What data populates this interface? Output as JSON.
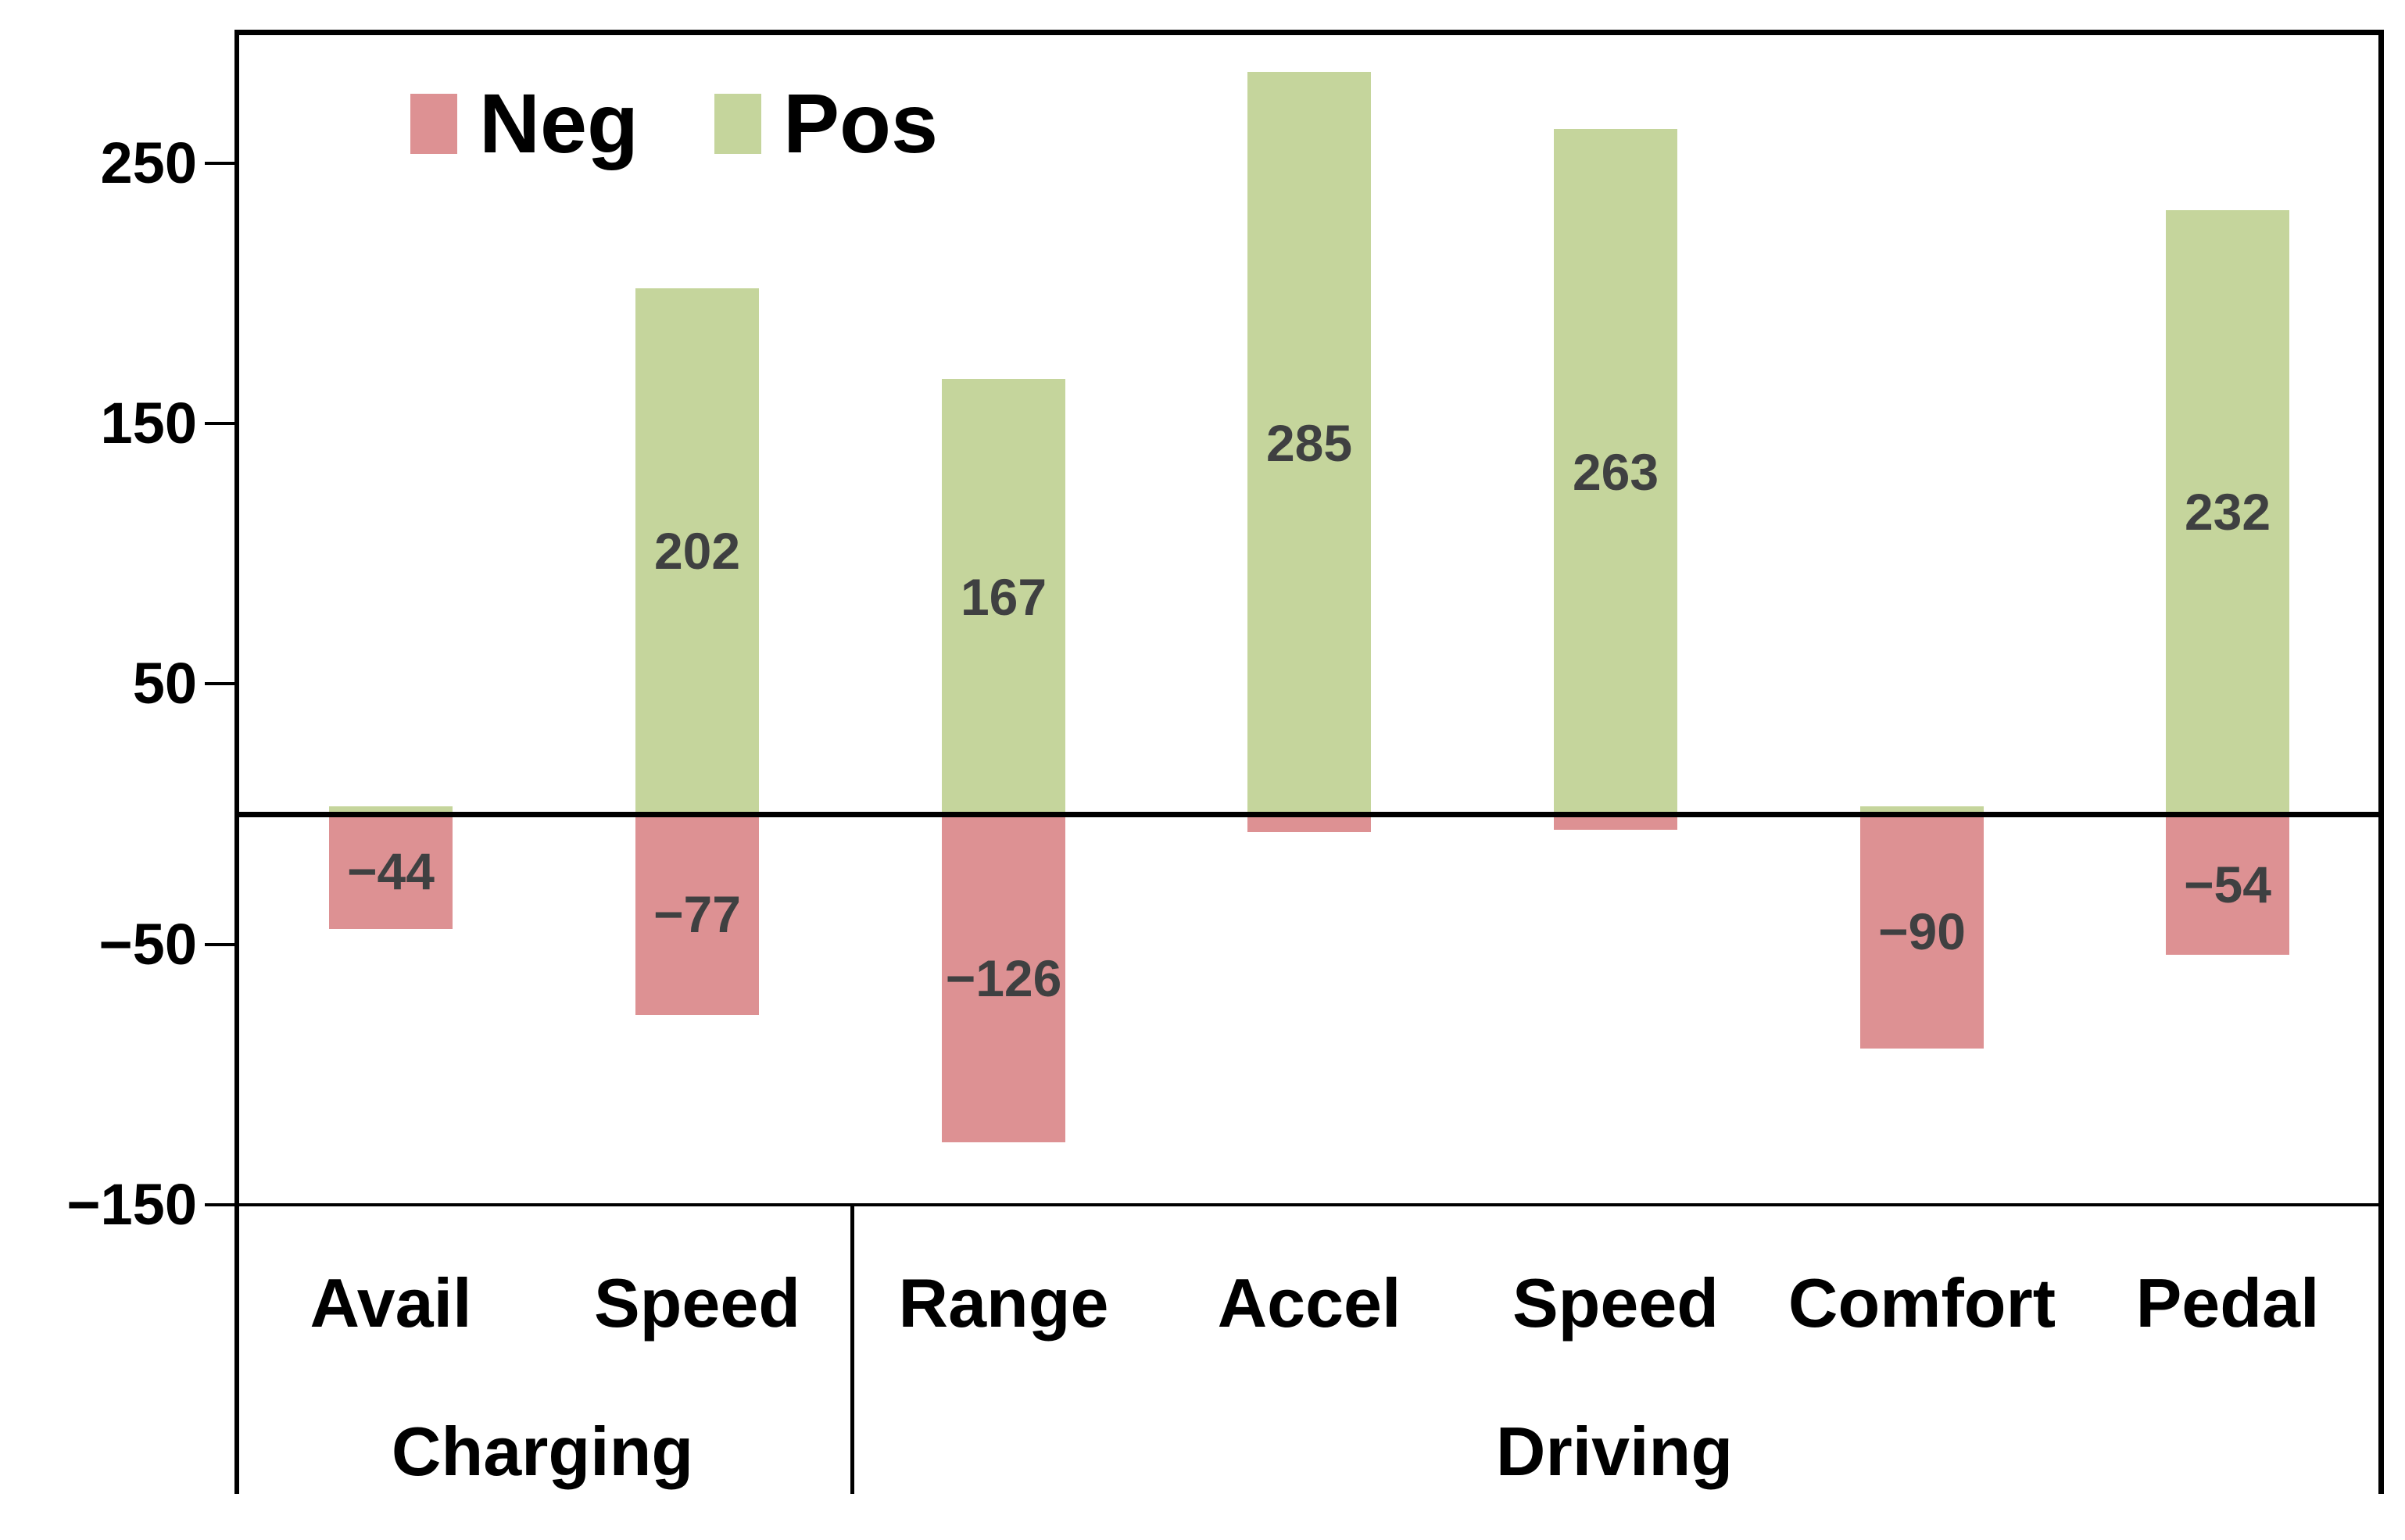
{
  "legend": {
    "items": [
      {
        "label": "Neg",
        "color": "#dd9193"
      },
      {
        "label": "Pos",
        "color": "#c5d59c"
      }
    ]
  },
  "chart_data": {
    "type": "bar",
    "title": "",
    "xlabel": "",
    "ylabel": "",
    "categories": [
      "Avail",
      "Speed",
      "Range",
      "Accel",
      "Speed",
      "Comfort",
      "Pedal"
    ],
    "category_groups": [
      "Charging",
      "Charging",
      "Driving",
      "Driving",
      "Driving",
      "Driving",
      "Driving"
    ],
    "group_labels": [
      "Charging",
      "Driving"
    ],
    "series": [
      {
        "name": "Neg",
        "color": "#dd9193",
        "values": [
          -44,
          -77,
          -126,
          -7,
          -6,
          -90,
          -54
        ],
        "data_labels": [
          "−44",
          "−77",
          "−126",
          "",
          "",
          "−90",
          "−54"
        ]
      },
      {
        "name": "Pos",
        "color": "#c5d59c",
        "values": [
          3,
          202,
          167,
          285,
          263,
          3,
          232
        ],
        "data_labels": [
          "",
          "202",
          "167",
          "285",
          "263",
          "",
          "232"
        ]
      }
    ],
    "ylim": [
      -150,
      301
    ],
    "yticks": [
      {
        "value": 250,
        "label": "250"
      },
      {
        "value": 150,
        "label": "150"
      },
      {
        "value": 50,
        "label": "50"
      },
      {
        "value": -50,
        "label": "−50"
      },
      {
        "value": -150,
        "label": "−150"
      }
    ],
    "zero_line": true,
    "grid": false,
    "legend_position": "top-left-inside",
    "data_label_color": "#3f4041",
    "axis_color": "#000000",
    "background_color": "#ffffff"
  }
}
